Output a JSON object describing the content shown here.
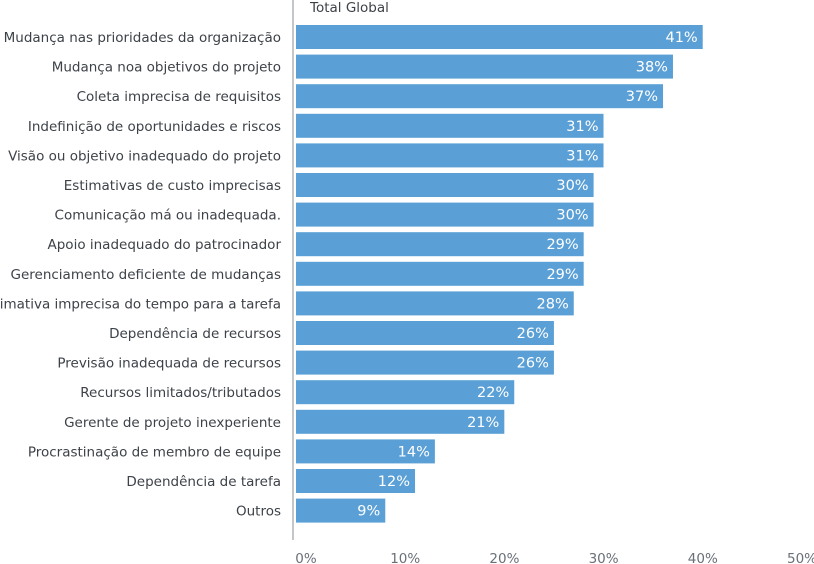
{
  "chart_data": {
    "type": "bar",
    "orientation": "horizontal",
    "series_name": "Total Global",
    "bar_color": "#5a9fd6",
    "axis_color": "#8a8f96",
    "xlim": [
      0,
      50
    ],
    "xticks": [
      "0%",
      "10%",
      "20%",
      "30%",
      "40%",
      "50%"
    ],
    "grid": false,
    "categories": [
      "Mudança nas prioridades da organização",
      "Mudança noa objetivos do projeto",
      "Coleta imprecisa de requisitos",
      "Indefinição de oportunidades e riscos",
      "Visão ou objetivo inadequado do projeto",
      "Estimativas de custo imprecisas",
      "Comunicação má ou inadequada.",
      "Apoio inadequado do patrocinador",
      "Gerenciamento deficiente de mudanças",
      "Estimativa imprecisa do tempo para a tarefa",
      "Dependência de recursos",
      "Previsão inadequada de recursos",
      "Recursos limitados/tributados",
      "Gerente de projeto inexperiente",
      "Procrastinação de membro de equipe",
      "Dependência de tarefa",
      "Outros"
    ],
    "values": [
      41,
      38,
      37,
      31,
      31,
      30,
      30,
      29,
      29,
      28,
      26,
      26,
      22,
      21,
      14,
      12,
      9
    ],
    "value_labels": [
      "41%",
      "38%",
      "37%",
      "31%",
      "31%",
      "30%",
      "30%",
      "29%",
      "29%",
      "28%",
      "26%",
      "26%",
      "22%",
      "21%",
      "14%",
      "12%",
      "9%"
    ]
  }
}
